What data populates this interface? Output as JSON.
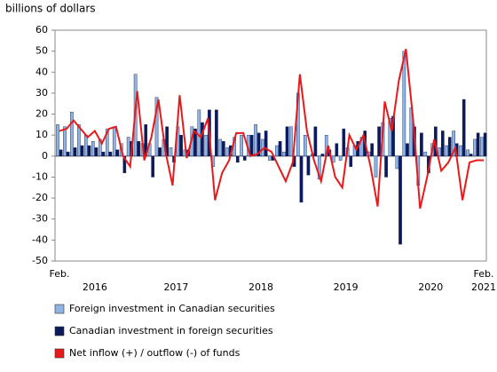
{
  "chart_data": {
    "type": "bar-line",
    "y_axis_label": "billions of dollars",
    "x_month_labels": [
      "Feb.",
      "Feb."
    ],
    "x_year_labels": [
      "2016",
      "2017",
      "2018",
      "2019",
      "2020",
      "2021"
    ],
    "ylim": [
      -50,
      60
    ],
    "yticks": [
      -50,
      -40,
      -30,
      -20,
      -10,
      0,
      10,
      20,
      30,
      40,
      50,
      60
    ],
    "series": [
      {
        "name": "Foreign investment in Canadian securities",
        "color": "#8eb4e3",
        "kind": "bar",
        "values": [
          15,
          14,
          21,
          15,
          10,
          7,
          8,
          13,
          14,
          6,
          9,
          39,
          6,
          6,
          28,
          8,
          4,
          14,
          3,
          14,
          22,
          10,
          -5,
          8,
          4,
          9,
          10,
          10,
          15,
          8,
          -2,
          5,
          2,
          14,
          30,
          10,
          1,
          -11,
          10,
          -3,
          -2,
          4,
          5,
          9,
          2,
          -10,
          16,
          18,
          -6,
          50,
          23,
          -14,
          2,
          6,
          4,
          5,
          12,
          5,
          3,
          8,
          9
        ]
      },
      {
        "name": "Canadian investment in foreign securities",
        "color": "#0c1a5a",
        "kind": "bar",
        "values": [
          3,
          2,
          4,
          5,
          5,
          4,
          2,
          2,
          3,
          -8,
          7,
          7,
          15,
          -10,
          4,
          14,
          -3,
          10,
          3,
          13,
          16,
          22,
          22,
          7,
          5,
          -3,
          -2,
          10,
          11,
          12,
          -2,
          7,
          14,
          -5,
          -22,
          -9,
          14,
          1,
          3,
          6,
          13,
          -5,
          7,
          12,
          6,
          14,
          -10,
          19,
          -42,
          6,
          14,
          11,
          -8,
          14,
          12,
          9,
          6,
          27,
          1,
          11,
          11
        ]
      },
      {
        "name": "Net inflow (+) / outflow (-) of funds",
        "color": "#e8191a",
        "kind": "line",
        "values": [
          12,
          13,
          17,
          13,
          9,
          12,
          6,
          13,
          14,
          0,
          -5,
          31,
          -2,
          9,
          27,
          2,
          -14,
          29,
          -1,
          12,
          9,
          18,
          -21,
          -8,
          -2,
          11,
          11,
          0,
          1,
          4,
          2,
          -5,
          -12,
          -3,
          39,
          12,
          -2,
          -12,
          5,
          -10,
          -15,
          10,
          3,
          10,
          -5,
          -24,
          26,
          12,
          36,
          51,
          18,
          -25,
          -10,
          8,
          -7,
          -3,
          4,
          -21,
          -3,
          -2,
          -2
        ]
      }
    ]
  }
}
